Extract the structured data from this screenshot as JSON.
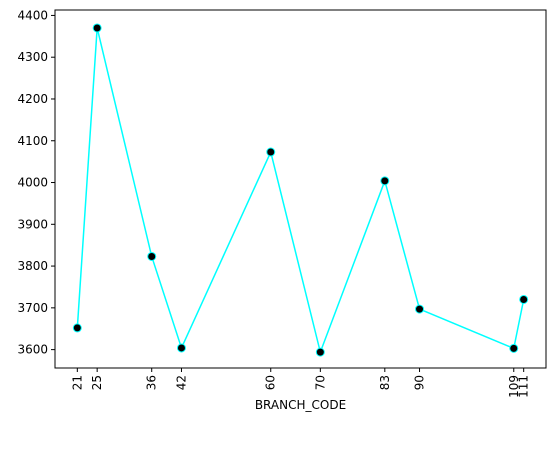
{
  "chart_data": {
    "type": "line",
    "xlabel": "BRANCH_CODE",
    "ylabel": "",
    "title": "",
    "x": [
      21,
      25,
      36,
      42,
      60,
      70,
      83,
      90,
      109,
      111
    ],
    "xticks": [
      "21",
      "25",
      "36",
      "42",
      "60",
      "70",
      "83",
      "90",
      "109",
      "111"
    ],
    "series": [
      {
        "values": [
          3652,
          4370,
          3823,
          3604,
          4073,
          3594,
          4004,
          3697,
          3603,
          3720
        ]
      }
    ],
    "yticks": [
      3600,
      3700,
      3800,
      3900,
      4000,
      4100,
      4200,
      4300,
      4400
    ],
    "ylim": [
      3556,
      4413
    ],
    "xlim": [
      16.5,
      115.5
    ],
    "grid": false,
    "line_color": "#00ffff",
    "marker_color": "#000000",
    "marker_edge_color": "#00ffff"
  }
}
